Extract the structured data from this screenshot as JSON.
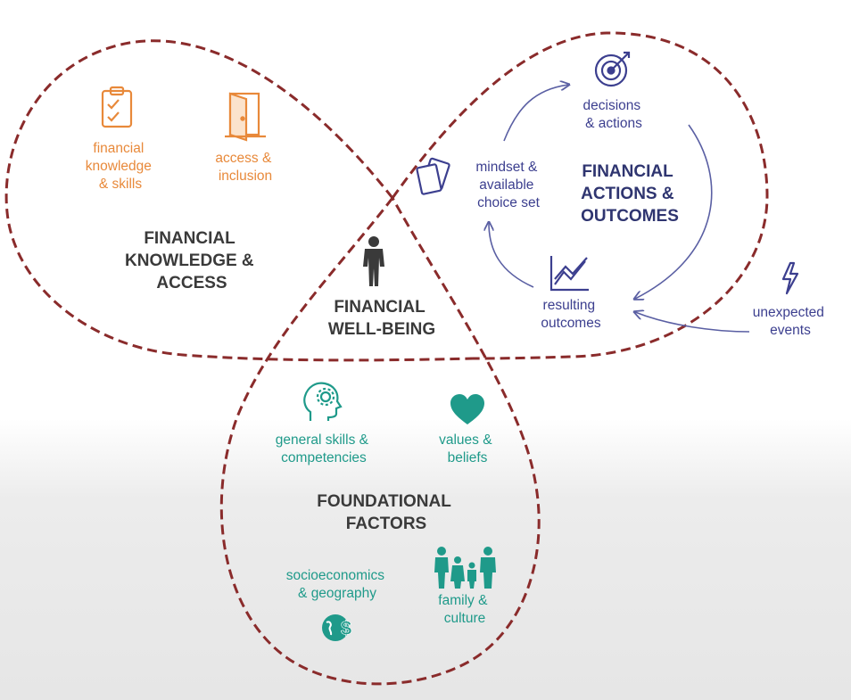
{
  "colors": {
    "loop_stroke": "#8a2b2b",
    "knowledge_text": "#e8893a",
    "actions_text": "#3c3f8f",
    "actions_title": "#2f3570",
    "foundation_text": "#1f9a8a",
    "title_text": "#3a3a3a"
  },
  "knowledge": {
    "title": [
      "FINANCIAL",
      "KNOWLEDGE &",
      "ACCESS"
    ],
    "items": [
      {
        "icon": "clipboard-check-icon",
        "label": [
          "financial",
          "knowledge",
          "& skills"
        ]
      },
      {
        "icon": "door-icon",
        "label": [
          "access &",
          "inclusion"
        ]
      }
    ]
  },
  "actions": {
    "title": [
      "FINANCIAL",
      "ACTIONS &",
      "OUTCOMES"
    ],
    "items": [
      {
        "icon": "target-icon",
        "label": [
          "decisions",
          "& actions"
        ]
      },
      {
        "icon": "cards-icon",
        "label": [
          "mindset &",
          "available",
          "choice set"
        ]
      },
      {
        "icon": "line-chart-icon",
        "label": [
          "resulting",
          "outcomes"
        ]
      }
    ]
  },
  "external": {
    "icon": "lightning-icon",
    "label": [
      "unexpected",
      "events"
    ]
  },
  "center": {
    "icon": "person-icon",
    "title": [
      "FINANCIAL",
      "WELL-BEING"
    ]
  },
  "foundation": {
    "title": [
      "FOUNDATIONAL",
      "FACTORS"
    ],
    "items": [
      {
        "icon": "head-gear-icon",
        "label": [
          "general skills &",
          "competencies"
        ]
      },
      {
        "icon": "heart-icon",
        "label": [
          "values &",
          "beliefs"
        ]
      },
      {
        "icon": "globe-dollar-icon",
        "label": [
          "socioeconomics",
          "& geography"
        ]
      },
      {
        "icon": "family-icon",
        "label": [
          "family &",
          "culture"
        ]
      }
    ]
  }
}
